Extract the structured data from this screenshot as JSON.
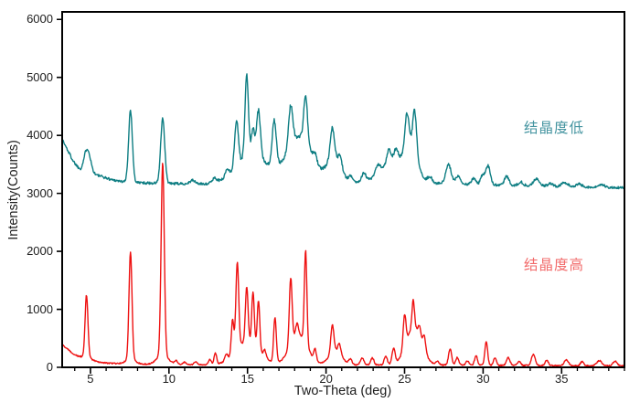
{
  "chart_data": {
    "type": "line",
    "title": "",
    "xlabel": "Two-Theta (deg)",
    "ylabel": "Intensity(Counts)",
    "xlim": [
      3.2,
      39.0
    ],
    "ylim": [
      0,
      6130
    ],
    "x_major_ticks": [
      5,
      10,
      15,
      20,
      25,
      30,
      35
    ],
    "x_minor_step": 1,
    "y_major_ticks": [
      0,
      1000,
      2000,
      3000,
      4000,
      5000,
      6000
    ],
    "grid": "off",
    "legend_position": "labels-inside-right",
    "axis_color": "#000000",
    "tick_label_color": "#1c1c1c",
    "background": "#ffffff",
    "series": [
      {
        "name": "结晶度低",
        "meaning": "low crystallinity - upper teal trace",
        "color": "#0d7d82",
        "label_color": "#4494a0",
        "label_pos": [
          32.6,
          4150
        ],
        "noise": {
          "base": 21,
          "scale": 0.012,
          "ref": 3100
        },
        "baseline_anchors": [
          [
            3.2,
            3930
          ],
          [
            3.9,
            3560
          ],
          [
            4.4,
            3380
          ],
          [
            5.0,
            3340
          ],
          [
            5.6,
            3300
          ],
          [
            6.3,
            3240
          ],
          [
            7.1,
            3200
          ],
          [
            8.5,
            3180
          ],
          [
            10,
            3170
          ],
          [
            12,
            3160
          ],
          [
            14,
            3160
          ],
          [
            17,
            3170
          ],
          [
            21,
            3180
          ],
          [
            23,
            3180
          ],
          [
            26.6,
            3180
          ],
          [
            28,
            3160
          ],
          [
            30,
            3150
          ],
          [
            32,
            3140
          ],
          [
            34,
            3120
          ],
          [
            36,
            3110
          ],
          [
            39,
            3095
          ]
        ],
        "peaks": [
          [
            4.8,
            420,
            0.2
          ],
          [
            7.55,
            1240,
            0.12
          ],
          [
            9.6,
            1100,
            0.13
          ],
          [
            11.5,
            60,
            0.18
          ],
          [
            12.9,
            80,
            0.14
          ],
          [
            13.7,
            120,
            0.12
          ],
          [
            14.3,
            800,
            0.12
          ],
          [
            14.95,
            1400,
            0.11
          ],
          [
            15.35,
            450,
            0.1
          ],
          [
            15.7,
            800,
            0.12
          ],
          [
            16.7,
            800,
            0.13
          ],
          [
            17.75,
            700,
            0.13
          ],
          [
            18.7,
            800,
            0.12
          ],
          [
            19.3,
            150,
            0.12
          ],
          [
            20.4,
            550,
            0.13
          ],
          [
            20.9,
            200,
            0.12
          ],
          [
            21.6,
            100,
            0.14
          ],
          [
            22.4,
            150,
            0.15
          ],
          [
            23.3,
            150,
            0.15
          ],
          [
            24.0,
            250,
            0.14
          ],
          [
            24.45,
            220,
            0.13
          ],
          [
            25.15,
            550,
            0.12
          ],
          [
            25.65,
            700,
            0.12
          ],
          [
            26.6,
            100,
            0.15
          ],
          [
            27.8,
            330,
            0.17
          ],
          [
            28.4,
            150,
            0.14
          ],
          [
            29.4,
            100,
            0.14
          ],
          [
            29.95,
            150,
            0.12
          ],
          [
            30.3,
            330,
            0.15
          ],
          [
            31.5,
            150,
            0.14
          ],
          [
            32.4,
            60,
            0.15
          ],
          [
            33.4,
            120,
            0.2
          ],
          [
            34.3,
            50,
            0.18
          ],
          [
            35.2,
            70,
            0.2
          ],
          [
            36.1,
            50,
            0.2
          ],
          [
            37.6,
            40,
            0.2
          ],
          [
            15.3,
            500,
            1.0
          ],
          [
            18.3,
            800,
            0.8
          ],
          [
            20.5,
            400,
            0.45
          ],
          [
            24.3,
            350,
            0.8
          ],
          [
            25.4,
            550,
            0.4
          ]
        ]
      },
      {
        "name": "结晶度高",
        "meaning": "high crystallinity - lower red trace",
        "color": "#ee1111",
        "label_color": "#f26b6b",
        "label_pos": [
          32.6,
          1780
        ],
        "noise": {
          "base": 10,
          "scale": 0.005,
          "ref": 0
        },
        "baseline_anchors": [
          [
            3.2,
            390
          ],
          [
            3.6,
            300
          ],
          [
            4.0,
            215
          ],
          [
            4.5,
            140
          ],
          [
            5.2,
            100
          ],
          [
            6,
            75
          ],
          [
            7,
            60
          ],
          [
            9,
            50
          ],
          [
            12,
            45
          ],
          [
            16,
            45
          ],
          [
            20,
            45
          ],
          [
            24,
            40
          ],
          [
            28,
            38
          ],
          [
            32,
            33
          ],
          [
            36,
            28
          ],
          [
            39,
            25
          ]
        ],
        "peaks": [
          [
            4.75,
            1060,
            0.09
          ],
          [
            4.75,
            60,
            0.3
          ],
          [
            7.55,
            1850,
            0.095
          ],
          [
            7.55,
            90,
            0.3
          ],
          [
            9.6,
            3300,
            0.1
          ],
          [
            9.6,
            170,
            0.35
          ],
          [
            10.45,
            60,
            0.1
          ],
          [
            11.0,
            40,
            0.1
          ],
          [
            11.7,
            50,
            0.1
          ],
          [
            12.6,
            90,
            0.09
          ],
          [
            12.95,
            200,
            0.08
          ],
          [
            13.65,
            110,
            0.09
          ],
          [
            14.05,
            600,
            0.08
          ],
          [
            14.35,
            1500,
            0.09
          ],
          [
            14.95,
            950,
            0.085
          ],
          [
            15.35,
            900,
            0.08
          ],
          [
            15.7,
            850,
            0.08
          ],
          [
            16.1,
            120,
            0.08
          ],
          [
            16.75,
            780,
            0.085
          ],
          [
            17.75,
            1150,
            0.09
          ],
          [
            18.15,
            200,
            0.09
          ],
          [
            18.7,
            1600,
            0.08
          ],
          [
            19.3,
            200,
            0.08
          ],
          [
            20.4,
            480,
            0.1
          ],
          [
            20.85,
            170,
            0.1
          ],
          [
            21.55,
            90,
            0.1
          ],
          [
            22.3,
            120,
            0.11
          ],
          [
            22.95,
            120,
            0.1
          ],
          [
            23.8,
            150,
            0.1
          ],
          [
            24.3,
            270,
            0.1
          ],
          [
            25.0,
            560,
            0.09
          ],
          [
            25.55,
            470,
            0.08
          ],
          [
            25.95,
            170,
            0.08
          ],
          [
            26.25,
            230,
            0.09
          ],
          [
            27.1,
            60,
            0.1
          ],
          [
            27.9,
            280,
            0.1
          ],
          [
            28.35,
            130,
            0.1
          ],
          [
            29.0,
            70,
            0.1
          ],
          [
            29.55,
            170,
            0.09
          ],
          [
            30.2,
            400,
            0.09
          ],
          [
            30.75,
            130,
            0.09
          ],
          [
            31.6,
            130,
            0.11
          ],
          [
            32.3,
            70,
            0.1
          ],
          [
            33.2,
            190,
            0.12
          ],
          [
            34.05,
            90,
            0.1
          ],
          [
            35.3,
            100,
            0.13
          ],
          [
            36.3,
            70,
            0.1
          ],
          [
            37.4,
            90,
            0.16
          ],
          [
            38.4,
            80,
            0.13
          ],
          [
            15.0,
            400,
            0.75
          ],
          [
            18.25,
            520,
            0.55
          ],
          [
            20.6,
            230,
            0.4
          ],
          [
            25.6,
            650,
            0.5
          ]
        ]
      }
    ]
  }
}
